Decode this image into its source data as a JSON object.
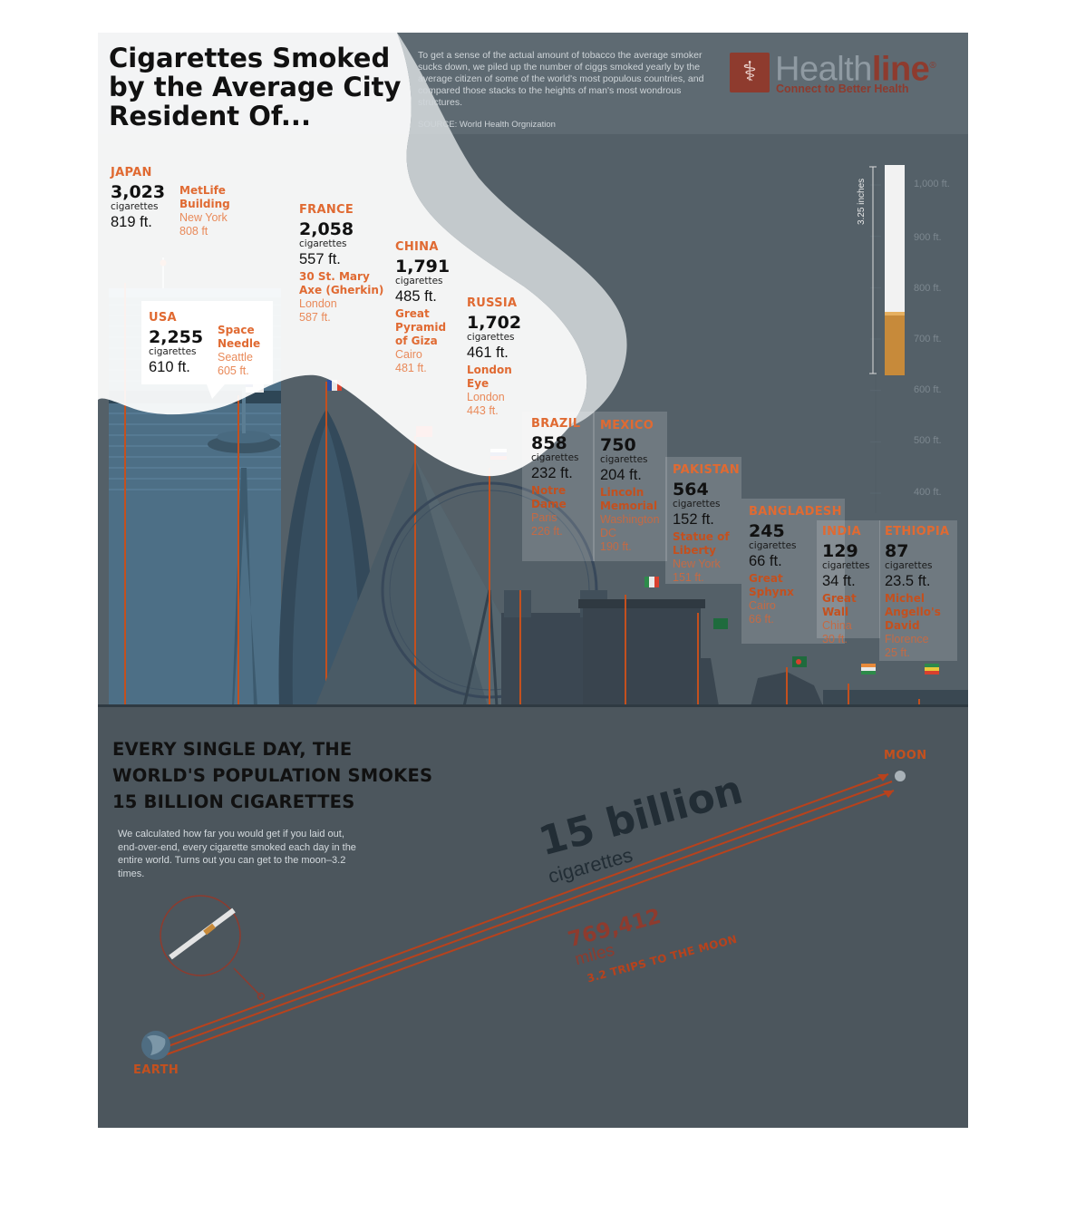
{
  "header": {
    "title": "Cigarettes Smoked by the Average City Resident Of...",
    "intro": "To get a sense of the actual amount of tobacco the average smoker sucks down, we piled up the number of ciggs smoked yearly by the average citizen of some of the world's most populous countries, and compared those stacks to the heights of man's most wondrous structures.",
    "source": "SOURCE: World Health Orgnization"
  },
  "brand": {
    "name_part1": "Health",
    "name_part2": "line",
    "registered": "®",
    "tagline": "Connect to Better Health"
  },
  "colors": {
    "accent_orange": "#e06a32",
    "brand_red": "#8e3b2e",
    "background_slate": "#546068",
    "smoke_white": "#ffffff"
  },
  "height_scale": {
    "labels": [
      "1,000 ft.",
      "900 ft.",
      "800 ft.",
      "700 ft.",
      "600 ft.",
      "500 ft.",
      "400 ft."
    ],
    "values_ft": [
      1000,
      900,
      800,
      700,
      600,
      500,
      400
    ],
    "cigarette_length_label": "3.25 inches"
  },
  "countries": [
    {
      "country": "JAPAN",
      "cigarettes": "3,023",
      "unit": "cigarettes",
      "stack_height": "819 ft.",
      "landmark": "MetLife Building",
      "location": "New York",
      "landmark_height": "808 ft"
    },
    {
      "country": "USA",
      "cigarettes": "2,255",
      "unit": "cigarettes",
      "stack_height": "610 ft.",
      "landmark": "Space Needle",
      "location": "Seattle",
      "landmark_height": "605 ft."
    },
    {
      "country": "FRANCE",
      "cigarettes": "2,058",
      "unit": "cigarettes",
      "stack_height": "557 ft.",
      "landmark": "30 St. Mary Axe (Gherkin)",
      "location": "London",
      "landmark_height": "587 ft."
    },
    {
      "country": "CHINA",
      "cigarettes": "1,791",
      "unit": "cigarettes",
      "stack_height": "485 ft.",
      "landmark": "Great Pyramid of Giza",
      "location": "Cairo",
      "landmark_height": "481 ft."
    },
    {
      "country": "RUSSIA",
      "cigarettes": "1,702",
      "unit": "cigarettes",
      "stack_height": "461 ft.",
      "landmark": "London Eye",
      "location": "London",
      "landmark_height": "443 ft."
    },
    {
      "country": "BRAZIL",
      "cigarettes": "858",
      "unit": "cigarettes",
      "stack_height": "232 ft.",
      "landmark": "Notre Dame",
      "location": "Paris",
      "landmark_height": "226 ft."
    },
    {
      "country": "MEXICO",
      "cigarettes": "750",
      "unit": "cigarettes",
      "stack_height": "204 ft.",
      "landmark": "Lincoln Memorial",
      "location": "Washington DC",
      "landmark_height": "190 ft."
    },
    {
      "country": "PAKISTAN",
      "cigarettes": "564",
      "unit": "cigarettes",
      "stack_height": "152 ft.",
      "landmark": "Statue of Liberty",
      "location": "New York",
      "landmark_height": "151 ft."
    },
    {
      "country": "BANGLADESH",
      "cigarettes": "245",
      "unit": "cigarettes",
      "stack_height": "66 ft.",
      "landmark": "Great Sphynx",
      "location": "Cairo",
      "landmark_height": "66 ft."
    },
    {
      "country": "INDIA",
      "cigarettes": "129",
      "unit": "cigarettes",
      "stack_height": "34 ft.",
      "landmark": "Great Wall",
      "location": "China",
      "landmark_height": "30 ft."
    },
    {
      "country": "ETHIOPIA",
      "cigarettes": "87",
      "unit": "cigarettes",
      "stack_height": "23.5 ft.",
      "landmark": "Michel Angello's David",
      "location": "Florence",
      "landmark_height": "25 ft."
    }
  ],
  "daily": {
    "headline_line1": "EVERY SINGLE DAY, THE",
    "headline_line2": "WORLD'S  POPULATION SMOKES",
    "headline_line3": "15 BILLION CIGARETTES",
    "text": "We calculated how far you would get if you laid out, end-over-end, every cigarette smoked each day in the entire world. Turns out you can get to the moon–3.2 times.",
    "big_count": "15 billion",
    "big_unit": "cigarettes",
    "miles_count": "769,412",
    "miles_unit": "miles",
    "trips": "3.2 TRIPS TO THE MOON",
    "earth_label": "EARTH",
    "moon_label": "MOON"
  }
}
